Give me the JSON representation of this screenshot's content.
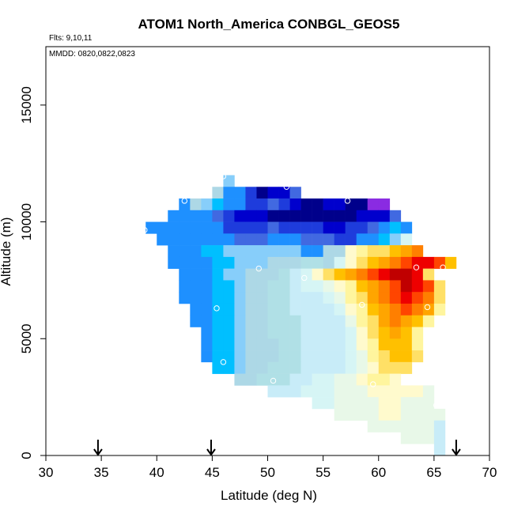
{
  "chart_data": {
    "type": "heatmap",
    "title": "ATOM1 North_America CONBGL_GEOS5",
    "annotations": [
      "Flts: 9,10,11",
      "MMDD: 0820,0822,0823"
    ],
    "xlabel": "Latitude (deg N)",
    "ylabel": "Altitude (m)",
    "xlim": [
      30,
      70
    ],
    "ylim": [
      0,
      17500
    ],
    "xticks": [
      "30",
      "35",
      "40",
      "45",
      "50",
      "55",
      "60",
      "65",
      "70"
    ],
    "yticks": [
      "0",
      "5000",
      "10000",
      "15000"
    ],
    "grid": false,
    "legend": "none",
    "cell_size": {
      "lat_deg": 1,
      "alt_m": 500
    },
    "colors": {
      "C": "#00008b",
      "D": "#0000cd",
      "E": "#1e3cdc",
      "F": "#4169e1",
      "G": "#1e90ff",
      "H": "#00bfff",
      "I": "#87cefa",
      "J": "#add8e6",
      "K": "#b0e0e6",
      "L": "#c8ecf8",
      "M": "#d6f5f5",
      "N": "#e8f8e8",
      "O": "#fffacd",
      "P": "#fff59e",
      "Q": "#ffe066",
      "R": "#ffc000",
      "S": "#ffa500",
      "T": "#ff7f00",
      "U": "#ff4500",
      "V": "#ee0000",
      "W": "#c00000",
      "X": "#8a2be2"
    },
    "rows": [
      {
        "alt": 11750,
        "start_lat": 46,
        "cells": "I"
      },
      {
        "alt": 11250,
        "start_lat": 45,
        "cells": "JGGECDDF"
      },
      {
        "alt": 10750,
        "start_lat": 42,
        "cells": "GJIHGGEEFEDCCDDCCXX"
      },
      {
        "alt": 10250,
        "start_lat": 41,
        "cells": "GGGGFEDDDCCCCCCCCDDDF"
      },
      {
        "alt": 9750,
        "start_lat": 39,
        "cells": "GGGGGGGEEEEFEEEEDDEEFGHG"
      },
      {
        "alt": 9250,
        "start_lat": 40,
        "cells": "GGGGGGGFFFGGGFFFEEGGHIM"
      },
      {
        "alt": 8750,
        "start_lat": 41,
        "cells": "GGGHHIIIIIIIGGJJOPQQRST"
      },
      {
        "alt": 8250,
        "start_lat": 41,
        "cells": "GGGGHHIIIJJJKKJMOQRSTUVVUR"
      },
      {
        "alt": 7750,
        "start_lat": 42,
        "cells": "GGGHIIJJJKLMOQRSTUVWWVQ"
      },
      {
        "alt": 7250,
        "start_lat": 42,
        "cells": "GGGHHIJJKKLMMNOPRSTUWVUQ"
      },
      {
        "alt": 6750,
        "start_lat": 42,
        "cells": "GGGHHIJJKKLLLMNPQSTUVUTQ"
      },
      {
        "alt": 6250,
        "start_lat": 43,
        "cells": "GGHHIJJKKLLLLMOPRSTUTSP"
      },
      {
        "alt": 5750,
        "start_lat": 43,
        "cells": "GGHHIJJKKKLLLLNPQSTSRP"
      },
      {
        "alt": 5250,
        "start_lat": 44,
        "cells": "GHHIJJKKKLLLLMOQRSRP"
      },
      {
        "alt": 4750,
        "start_lat": 44,
        "cells": "GHHIJJJKKLLLLMOPRRRP"
      },
      {
        "alt": 4250,
        "start_lat": 44,
        "cells": "GHHIJJJKKLLLLMNPQRRQ"
      },
      {
        "alt": 3750,
        "start_lat": 45,
        "cells": "HHIJJKKKLLLLMNOQQQ"
      },
      {
        "alt": 3250,
        "start_lat": 47,
        "cells": "JJKKKLLMMNNOPPO"
      },
      {
        "alt": 2750,
        "start_lat": 50,
        "cells": "LLLMMMNNNOOOOON"
      },
      {
        "alt": 2250,
        "start_lat": 54,
        "cells": "MMNNNNOONNN"
      },
      {
        "alt": 1750,
        "start_lat": 56,
        "cells": "NNNNOONNNN"
      },
      {
        "alt": 1250,
        "start_lat": 59,
        "cells": "NNNNNNL"
      },
      {
        "alt": 750,
        "start_lat": 62,
        "cells": "NNNL"
      },
      {
        "alt": 250,
        "start_lat": 65,
        "cells": "L"
      }
    ],
    "sample_points": [
      {
        "lat": 46.0,
        "alt": 11950
      },
      {
        "lat": 51.7,
        "alt": 11500
      },
      {
        "lat": 42.5,
        "alt": 10900
      },
      {
        "lat": 57.2,
        "alt": 10900
      },
      {
        "lat": 38.9,
        "alt": 9650
      },
      {
        "lat": 49.2,
        "alt": 8000
      },
      {
        "lat": 63.4,
        "alt": 8050
      },
      {
        "lat": 65.8,
        "alt": 8050
      },
      {
        "lat": 53.3,
        "alt": 7600
      },
      {
        "lat": 45.4,
        "alt": 6300
      },
      {
        "lat": 58.5,
        "alt": 6450
      },
      {
        "lat": 64.4,
        "alt": 6350
      },
      {
        "lat": 46.0,
        "alt": 4000
      },
      {
        "lat": 50.5,
        "alt": 3200
      },
      {
        "lat": 59.5,
        "alt": 3050
      },
      {
        "lat": 65.2,
        "alt": 2150
      }
    ],
    "flight_markers_lat": [
      34.7,
      44.9,
      67.0
    ]
  }
}
